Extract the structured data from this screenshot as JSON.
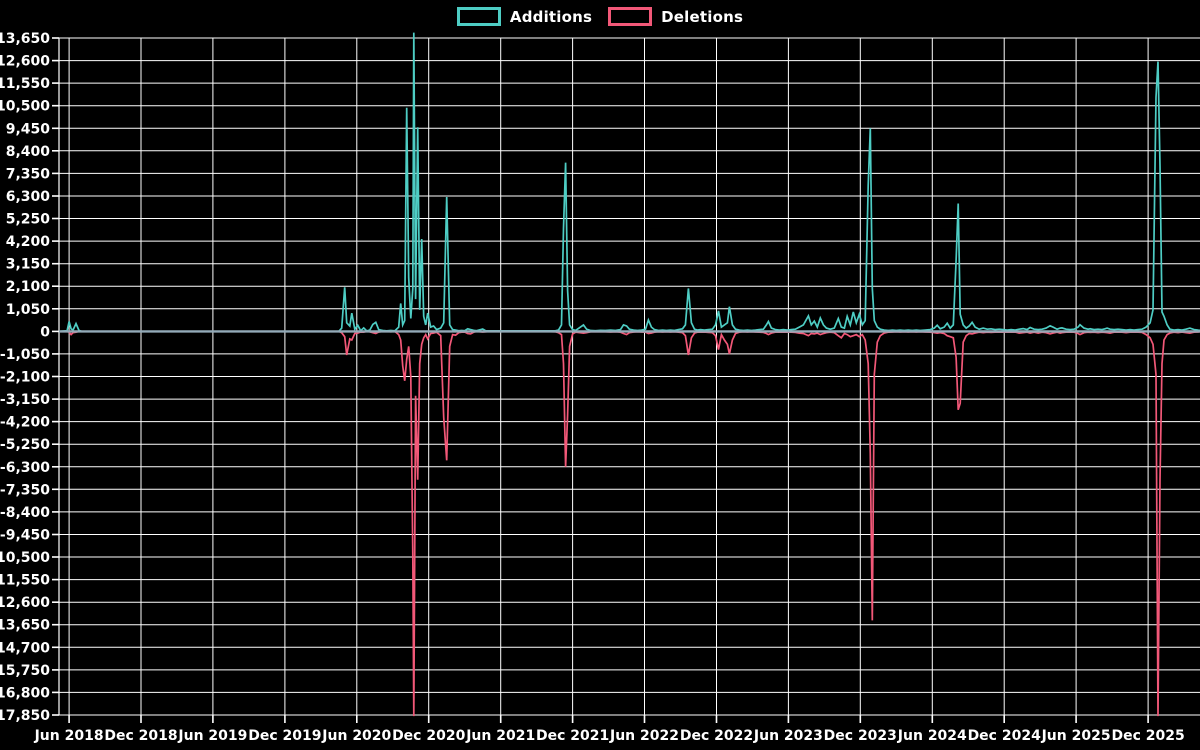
{
  "page": {
    "background": "#000000",
    "text_color": "#ffffff"
  },
  "legend": {
    "position": "top-center",
    "items": [
      {
        "label": "Additions",
        "color": "#4ecdc4"
      },
      {
        "label": "Deletions",
        "color": "#f25878"
      }
    ]
  },
  "chart_data": {
    "type": "line",
    "title": "",
    "grid": true,
    "grid_color": "#ffffff",
    "zero_line_color": "#93aab8",
    "background": "#000000",
    "legend_position": "top-center",
    "x_axis": {
      "label": "",
      "unit": "decimal_year",
      "range": [
        2018.347,
        2026.278
      ],
      "tick_values": [
        2018.417,
        2018.917,
        2019.417,
        2019.917,
        2020.417,
        2020.917,
        2021.417,
        2021.917,
        2022.417,
        2022.917,
        2023.417,
        2023.917,
        2024.417,
        2024.917,
        2025.417,
        2025.917
      ],
      "tick_labels": [
        "Jun 2018",
        "Dec 2018",
        "Jun 2019",
        "Dec 2019",
        "Jun 2020",
        "Dec 2020",
        "Jun 2021",
        "Dec 2021",
        "Jun 2022",
        "Dec 2022",
        "Jun 2023",
        "Dec 2023",
        "Jun 2024",
        "Dec 2024",
        "Jun 2025",
        "Dec 2025"
      ]
    },
    "y_axis": {
      "label": "",
      "range": [
        -17850,
        13650
      ],
      "tick_step": 1050,
      "tick_labels": [
        "13,650",
        "12,600",
        "11,550",
        "10,500",
        "9,450",
        "8,400",
        "7,350",
        "6,300",
        "5,250",
        "4,200",
        "3,150",
        "2,100",
        "1,050",
        "0",
        "-1,050",
        "-2,100",
        "-3,150",
        "-4,200",
        "-5,250",
        "-6,300",
        "-7,350",
        "-8,400",
        "-9,450",
        "-10,500",
        "-11,550",
        "-12,600",
        "-13,650",
        "-14,700",
        "-15,750",
        "-16,800",
        "-17,850"
      ]
    },
    "series": [
      {
        "name": "Additions",
        "color": "#4ecdc4"
      },
      {
        "name": "Deletions",
        "color": "#f25878"
      }
    ],
    "points": [
      [
        2018.347,
        0,
        0
      ],
      [
        2018.403,
        30,
        0
      ],
      [
        2018.417,
        460,
        -40
      ],
      [
        2018.431,
        120,
        -150
      ],
      [
        2018.444,
        60,
        -60
      ],
      [
        2018.465,
        360,
        -40
      ],
      [
        2018.486,
        40,
        0
      ],
      [
        2018.507,
        0,
        0
      ],
      [
        2020.292,
        0,
        0
      ],
      [
        2020.312,
        150,
        -60
      ],
      [
        2020.333,
        2050,
        -250
      ],
      [
        2020.347,
        400,
        -1100
      ],
      [
        2020.368,
        250,
        -350
      ],
      [
        2020.382,
        850,
        -400
      ],
      [
        2020.403,
        100,
        -100
      ],
      [
        2020.424,
        280,
        -80
      ],
      [
        2020.444,
        30,
        -30
      ],
      [
        2020.465,
        160,
        -40
      ],
      [
        2020.486,
        20,
        0
      ],
      [
        2020.507,
        60,
        -20
      ],
      [
        2020.528,
        320,
        -60
      ],
      [
        2020.549,
        420,
        -100
      ],
      [
        2020.569,
        80,
        -30
      ],
      [
        2020.597,
        40,
        0
      ],
      [
        2020.625,
        20,
        0
      ],
      [
        2020.653,
        40,
        -20
      ],
      [
        2020.681,
        20,
        0
      ],
      [
        2020.708,
        200,
        -150
      ],
      [
        2020.722,
        1300,
        -400
      ],
      [
        2020.736,
        300,
        -1600
      ],
      [
        2020.75,
        500,
        -2300
      ],
      [
        2020.764,
        10400,
        -1300
      ],
      [
        2020.778,
        2500,
        -700
      ],
      [
        2020.792,
        600,
        -2100
      ],
      [
        2020.806,
        2000,
        -10400
      ],
      [
        2020.813,
        13900,
        -17900
      ],
      [
        2020.826,
        1500,
        -3000
      ],
      [
        2020.84,
        9500,
        -6900
      ],
      [
        2020.854,
        1000,
        -1500
      ],
      [
        2020.868,
        4300,
        -600
      ],
      [
        2020.882,
        700,
        -300
      ],
      [
        2020.896,
        300,
        -150
      ],
      [
        2020.91,
        850,
        -350
      ],
      [
        2020.931,
        200,
        -100
      ],
      [
        2020.951,
        250,
        -80
      ],
      [
        2020.972,
        80,
        -40
      ],
      [
        2021.0,
        150,
        -200
      ],
      [
        2021.021,
        400,
        -4000
      ],
      [
        2021.042,
        6250,
        -6000
      ],
      [
        2021.063,
        300,
        -700
      ],
      [
        2021.083,
        80,
        -150
      ],
      [
        2021.104,
        60,
        -180
      ],
      [
        2021.125,
        30,
        -60
      ],
      [
        2021.146,
        40,
        -40
      ],
      [
        2021.167,
        30,
        -30
      ],
      [
        2021.188,
        120,
        -100
      ],
      [
        2021.208,
        80,
        -120
      ],
      [
        2021.229,
        50,
        -40
      ],
      [
        2021.25,
        30,
        0
      ],
      [
        2021.292,
        110,
        -30
      ],
      [
        2021.312,
        30,
        -20
      ],
      [
        2021.347,
        20,
        0
      ],
      [
        2021.417,
        20,
        -10
      ],
      [
        2021.486,
        20,
        -10
      ],
      [
        2021.556,
        25,
        -10
      ],
      [
        2021.625,
        20,
        -10
      ],
      [
        2021.694,
        20,
        -10
      ],
      [
        2021.764,
        25,
        -15
      ],
      [
        2021.799,
        30,
        -20
      ],
      [
        2021.819,
        60,
        -60
      ],
      [
        2021.84,
        300,
        -150
      ],
      [
        2021.854,
        4800,
        -1500
      ],
      [
        2021.868,
        7850,
        -6300
      ],
      [
        2021.882,
        1900,
        -3900
      ],
      [
        2021.896,
        300,
        -700
      ],
      [
        2021.917,
        80,
        -120
      ],
      [
        2021.938,
        40,
        -40
      ],
      [
        2021.993,
        300,
        -80
      ],
      [
        2022.014,
        100,
        -60
      ],
      [
        2022.042,
        40,
        -20
      ],
      [
        2022.076,
        30,
        -10
      ],
      [
        2022.111,
        50,
        -20
      ],
      [
        2022.146,
        40,
        -20
      ],
      [
        2022.181,
        60,
        -30
      ],
      [
        2022.215,
        40,
        -20
      ],
      [
        2022.25,
        80,
        -40
      ],
      [
        2022.271,
        300,
        -100
      ],
      [
        2022.292,
        250,
        -150
      ],
      [
        2022.312,
        100,
        -60
      ],
      [
        2022.34,
        60,
        -30
      ],
      [
        2022.368,
        40,
        -20
      ],
      [
        2022.396,
        60,
        -30
      ],
      [
        2022.424,
        100,
        -40
      ],
      [
        2022.444,
        530,
        -100
      ],
      [
        2022.465,
        200,
        -80
      ],
      [
        2022.486,
        80,
        -40
      ],
      [
        2022.514,
        40,
        -20
      ],
      [
        2022.542,
        60,
        -30
      ],
      [
        2022.569,
        40,
        -20
      ],
      [
        2022.597,
        60,
        -30
      ],
      [
        2022.625,
        40,
        -20
      ],
      [
        2022.653,
        80,
        -40
      ],
      [
        2022.681,
        120,
        -60
      ],
      [
        2022.701,
        300,
        -200
      ],
      [
        2022.722,
        2000,
        -1100
      ],
      [
        2022.743,
        400,
        -300
      ],
      [
        2022.764,
        100,
        -80
      ],
      [
        2022.785,
        60,
        -40
      ],
      [
        2022.806,
        80,
        -40
      ],
      [
        2022.833,
        60,
        -30
      ],
      [
        2022.861,
        80,
        -50
      ],
      [
        2022.889,
        100,
        -60
      ],
      [
        2022.91,
        300,
        -200
      ],
      [
        2022.931,
        950,
        -850
      ],
      [
        2022.951,
        200,
        -150
      ],
      [
        2022.972,
        300,
        -400
      ],
      [
        2022.993,
        400,
        -600
      ],
      [
        2023.007,
        1150,
        -1050
      ],
      [
        2023.028,
        300,
        -400
      ],
      [
        2023.049,
        100,
        -100
      ],
      [
        2023.076,
        60,
        -40
      ],
      [
        2023.104,
        40,
        -20
      ],
      [
        2023.132,
        60,
        -30
      ],
      [
        2023.16,
        40,
        -20
      ],
      [
        2023.188,
        60,
        -30
      ],
      [
        2023.215,
        80,
        -40
      ],
      [
        2023.243,
        100,
        -50
      ],
      [
        2023.264,
        300,
        -100
      ],
      [
        2023.278,
        460,
        -150
      ],
      [
        2023.299,
        150,
        -80
      ],
      [
        2023.326,
        80,
        -40
      ],
      [
        2023.354,
        60,
        -30
      ],
      [
        2023.382,
        80,
        -40
      ],
      [
        2023.41,
        60,
        -30
      ],
      [
        2023.438,
        80,
        -40
      ],
      [
        2023.465,
        100,
        -50
      ],
      [
        2023.493,
        200,
        -80
      ],
      [
        2023.521,
        300,
        -100
      ],
      [
        2023.556,
        720,
        -200
      ],
      [
        2023.576,
        300,
        -100
      ],
      [
        2023.597,
        480,
        -120
      ],
      [
        2023.618,
        200,
        -80
      ],
      [
        2023.639,
        620,
        -150
      ],
      [
        2023.66,
        300,
        -100
      ],
      [
        2023.681,
        150,
        -60
      ],
      [
        2023.708,
        100,
        -40
      ],
      [
        2023.736,
        150,
        -60
      ],
      [
        2023.764,
        600,
        -200
      ],
      [
        2023.785,
        200,
        -300
      ],
      [
        2023.806,
        150,
        -100
      ],
      [
        2023.826,
        700,
        -150
      ],
      [
        2023.847,
        300,
        -250
      ],
      [
        2023.868,
        900,
        -200
      ],
      [
        2023.889,
        400,
        -150
      ],
      [
        2023.91,
        800,
        -250
      ],
      [
        2023.931,
        300,
        -150
      ],
      [
        2023.951,
        500,
        -400
      ],
      [
        2023.972,
        6800,
        -1500
      ],
      [
        2023.986,
        9450,
        -5700
      ],
      [
        2024.0,
        2000,
        -13450
      ],
      [
        2024.014,
        500,
        -2000
      ],
      [
        2024.035,
        200,
        -500
      ],
      [
        2024.056,
        100,
        -200
      ],
      [
        2024.083,
        60,
        -80
      ],
      [
        2024.111,
        40,
        -40
      ],
      [
        2024.139,
        60,
        -30
      ],
      [
        2024.167,
        40,
        -20
      ],
      [
        2024.194,
        60,
        -30
      ],
      [
        2024.222,
        40,
        -20
      ],
      [
        2024.25,
        60,
        -30
      ],
      [
        2024.278,
        40,
        -20
      ],
      [
        2024.306,
        60,
        -30
      ],
      [
        2024.333,
        40,
        -20
      ],
      [
        2024.368,
        60,
        -30
      ],
      [
        2024.403,
        80,
        -40
      ],
      [
        2024.431,
        150,
        -60
      ],
      [
        2024.451,
        280,
        -80
      ],
      [
        2024.472,
        120,
        -60
      ],
      [
        2024.5,
        200,
        -100
      ],
      [
        2024.521,
        380,
        -200
      ],
      [
        2024.542,
        150,
        -250
      ],
      [
        2024.563,
        300,
        -300
      ],
      [
        2024.583,
        3300,
        -1200
      ],
      [
        2024.597,
        5950,
        -3650
      ],
      [
        2024.611,
        800,
        -3350
      ],
      [
        2024.632,
        300,
        -500
      ],
      [
        2024.653,
        150,
        -200
      ],
      [
        2024.674,
        250,
        -100
      ],
      [
        2024.694,
        420,
        -120
      ],
      [
        2024.715,
        200,
        -80
      ],
      [
        2024.743,
        100,
        -40
      ],
      [
        2024.771,
        150,
        -60
      ],
      [
        2024.799,
        100,
        -40
      ],
      [
        2024.826,
        120,
        -50
      ],
      [
        2024.854,
        80,
        -40
      ],
      [
        2024.882,
        100,
        -40
      ],
      [
        2024.91,
        80,
        -40
      ],
      [
        2024.938,
        60,
        -30
      ],
      [
        2024.965,
        80,
        -40
      ],
      [
        2024.993,
        60,
        -30
      ],
      [
        2025.021,
        100,
        -80
      ],
      [
        2025.049,
        130,
        -60
      ],
      [
        2025.076,
        80,
        -40
      ],
      [
        2025.097,
        180,
        -80
      ],
      [
        2025.125,
        100,
        -40
      ],
      [
        2025.153,
        80,
        -80
      ],
      [
        2025.181,
        100,
        -40
      ],
      [
        2025.208,
        150,
        -60
      ],
      [
        2025.236,
        260,
        -120
      ],
      [
        2025.257,
        200,
        -80
      ],
      [
        2025.285,
        100,
        -40
      ],
      [
        2025.306,
        150,
        -80
      ],
      [
        2025.319,
        160,
        -60
      ],
      [
        2025.347,
        100,
        -40
      ],
      [
        2025.375,
        80,
        -40
      ],
      [
        2025.403,
        100,
        -40
      ],
      [
        2025.431,
        200,
        -100
      ],
      [
        2025.444,
        310,
        -150
      ],
      [
        2025.472,
        150,
        -60
      ],
      [
        2025.5,
        100,
        -40
      ],
      [
        2025.514,
        120,
        -50
      ],
      [
        2025.542,
        80,
        -40
      ],
      [
        2025.569,
        100,
        -60
      ],
      [
        2025.597,
        80,
        -40
      ],
      [
        2025.618,
        120,
        -50
      ],
      [
        2025.632,
        150,
        -60
      ],
      [
        2025.653,
        100,
        -80
      ],
      [
        2025.681,
        80,
        -40
      ],
      [
        2025.708,
        100,
        -40
      ],
      [
        2025.736,
        80,
        -40
      ],
      [
        2025.764,
        60,
        -60
      ],
      [
        2025.792,
        80,
        -40
      ],
      [
        2025.819,
        60,
        -30
      ],
      [
        2025.847,
        80,
        -40
      ],
      [
        2025.875,
        100,
        -50
      ],
      [
        2025.903,
        200,
        -150
      ],
      [
        2025.931,
        400,
        -300
      ],
      [
        2025.951,
        1000,
        -600
      ],
      [
        2025.972,
        10900,
        -2000
      ],
      [
        2025.986,
        12550,
        -17900
      ],
      [
        2026.0,
        7700,
        -6900
      ],
      [
        2026.014,
        900,
        -1500
      ],
      [
        2026.028,
        700,
        -400
      ],
      [
        2026.049,
        300,
        -150
      ],
      [
        2026.069,
        100,
        -80
      ],
      [
        2026.097,
        60,
        -40
      ],
      [
        2026.125,
        80,
        -60
      ],
      [
        2026.153,
        60,
        -30
      ],
      [
        2026.181,
        100,
        -60
      ],
      [
        2026.208,
        150,
        -80
      ],
      [
        2026.236,
        80,
        -40
      ],
      [
        2026.264,
        60,
        -30
      ],
      [
        2026.278,
        50,
        -20
      ]
    ]
  }
}
